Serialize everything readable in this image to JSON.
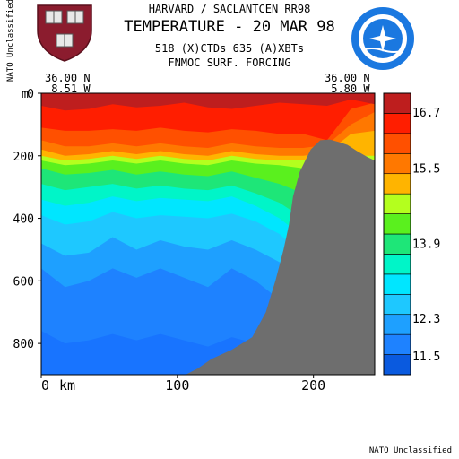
{
  "header": {
    "institution": "HARVARD / SACLANTCEN RR98",
    "title": "TEMPERATURE - 20 MAR 98",
    "data_sources": "518 (X)CTDs   635 (A)XBTs",
    "forcing": "FNMOC SURF. FORCING"
  },
  "classification": {
    "side": "NATO Unclassified",
    "footer": "NATO Unclassified"
  },
  "section_ends": {
    "left_lat": "36.00 N",
    "left_lon": "8.51 W",
    "right_lat": "36.00 N",
    "right_lon": "5.80 W"
  },
  "logos": {
    "left": "harvard-shield",
    "right": "nato-undersea-research-seal"
  },
  "colors": {
    "plot_bg": "#1874ff",
    "bathymetry": "#6e6e6e"
  },
  "chart_data": {
    "type": "heatmap",
    "title": "TEMPERATURE - 20 MAR 98",
    "xlabel": "",
    "ylabel": "",
    "x_unit_label": "km",
    "y_unit_label": "m",
    "xlim": [
      0,
      245
    ],
    "ylim": [
      900,
      0
    ],
    "x_ticks": [
      {
        "value": 0,
        "label": "0"
      },
      {
        "value": 100,
        "label": "100"
      },
      {
        "value": 200,
        "label": "200"
      }
    ],
    "y_ticks": [
      {
        "value": 0,
        "label": "0"
      },
      {
        "value": 200,
        "label": "200"
      },
      {
        "value": 400,
        "label": "400"
      },
      {
        "value": 600,
        "label": "600"
      },
      {
        "value": 800,
        "label": "800"
      }
    ],
    "colorbar": {
      "segments": [
        "#0a5adf",
        "#1e82ff",
        "#1ea0ff",
        "#1ec8ff",
        "#00e6ff",
        "#00f5c8",
        "#1ee678",
        "#5af01e",
        "#b4ff1e",
        "#ffb400",
        "#ff7800",
        "#ff5000",
        "#ff1e00",
        "#be1e1e"
      ],
      "ticks": [
        {
          "value": 11.5,
          "label": "11.5"
        },
        {
          "value": 12.3,
          "label": "12.3"
        },
        {
          "value": 13.9,
          "label": "13.9"
        },
        {
          "value": 15.5,
          "label": "15.5"
        },
        {
          "value": 16.7,
          "label": "16.7"
        }
      ],
      "range": [
        11.1,
        17.1
      ]
    },
    "isotherms": [
      {
        "level": 16.9,
        "color": "#be1e1e",
        "depths": [
          40,
          55,
          50,
          35,
          45,
          40,
          30,
          45,
          50,
          40,
          30,
          35,
          40,
          20,
          35
        ]
      },
      {
        "level": 16.5,
        "color": "#ff1e00",
        "depths": [
          110,
          120,
          120,
          115,
          120,
          110,
          120,
          125,
          115,
          120,
          130,
          130,
          150,
          50,
          30
        ]
      },
      {
        "level": 16.0,
        "color": "#ff5000",
        "depths": [
          150,
          170,
          170,
          160,
          170,
          160,
          170,
          175,
          160,
          170,
          175,
          175,
          165,
          100,
          60
        ]
      },
      {
        "level": 15.5,
        "color": "#ff7800",
        "depths": [
          180,
          200,
          195,
          185,
          195,
          185,
          195,
          200,
          185,
          195,
          200,
          200,
          190,
          130,
          120
        ]
      },
      {
        "level": 15.0,
        "color": "#ffb400",
        "depths": [
          200,
          215,
          210,
          200,
          210,
          200,
          210,
          215,
          200,
          210,
          215,
          215,
          215,
          200,
          200
        ]
      },
      {
        "level": 14.5,
        "color": "#b4ff1e",
        "depths": [
          215,
          230,
          225,
          215,
          225,
          215,
          225,
          230,
          215,
          225,
          230,
          240,
          260,
          260,
          260
        ]
      },
      {
        "level": 14.0,
        "color": "#5af01e",
        "depths": [
          240,
          260,
          255,
          245,
          260,
          250,
          260,
          265,
          250,
          270,
          290,
          320,
          420,
          500,
          560
        ]
      },
      {
        "level": 13.5,
        "color": "#1ee678",
        "depths": [
          290,
          310,
          300,
          290,
          305,
          295,
          305,
          310,
          295,
          320,
          350,
          400,
          560,
          700,
          780
        ]
      },
      {
        "level": 13.0,
        "color": "#00f5c8",
        "depths": [
          340,
          360,
          350,
          330,
          345,
          335,
          340,
          345,
          330,
          360,
          400,
          460,
          640,
          800,
          880
        ]
      },
      {
        "level": 12.6,
        "color": "#00e6ff",
        "depths": [
          390,
          420,
          410,
          380,
          400,
          390,
          395,
          400,
          385,
          410,
          450,
          520,
          720,
          880,
          900
        ]
      },
      {
        "level": 12.3,
        "color": "#1ec8ff",
        "depths": [
          480,
          520,
          510,
          460,
          500,
          470,
          490,
          500,
          470,
          500,
          540,
          620,
          820,
          900,
          900
        ]
      },
      {
        "level": 11.9,
        "color": "#1ea0ff",
        "depths": [
          560,
          620,
          600,
          560,
          590,
          560,
          590,
          620,
          560,
          600,
          660,
          740,
          900,
          900,
          900
        ]
      },
      {
        "level": 11.5,
        "color": "#1e82ff",
        "depths": [
          760,
          800,
          790,
          770,
          790,
          770,
          790,
          810,
          780,
          800,
          840,
          880,
          900,
          900,
          900
        ]
      }
    ],
    "isotherm_x": [
      0,
      17.5,
      35,
      52.5,
      70,
      87.5,
      105,
      122.5,
      140,
      157.5,
      175,
      192.5,
      210,
      227.5,
      245
    ],
    "bathymetry": {
      "x": [
        106,
        115,
        125,
        140,
        155,
        165,
        172,
        178,
        182,
        185,
        190,
        198,
        205,
        212,
        218,
        225,
        232,
        240,
        245
      ],
      "depth": [
        900,
        880,
        850,
        820,
        780,
        700,
        600,
        500,
        420,
        330,
        250,
        180,
        150,
        148,
        155,
        165,
        185,
        205,
        215
      ]
    }
  }
}
